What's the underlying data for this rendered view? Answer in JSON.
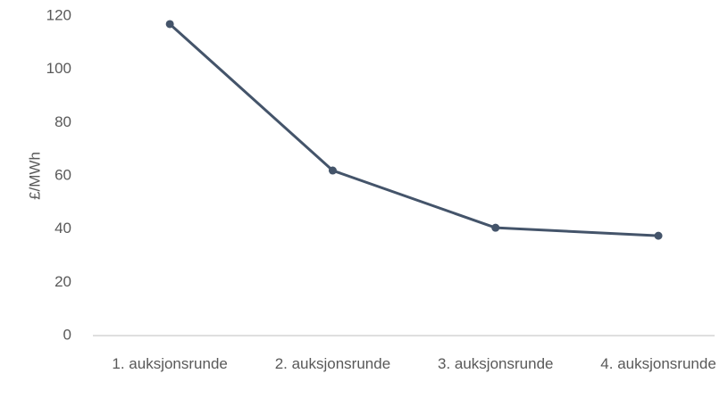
{
  "chart_data": {
    "type": "line",
    "y_label": "£/MWh",
    "categories": [
      "1. auksjonsrunde",
      "2. auksjonsrunde",
      "3. auksjonsrunde",
      "4. auksjonsrunde"
    ],
    "series": [
      {
        "name": "£/MWh",
        "color": "#44546a",
        "values": [
          117,
          62,
          40.5,
          37.5
        ]
      }
    ],
    "ylim": [
      0,
      120
    ],
    "yticks": [
      0,
      20,
      40,
      60,
      80,
      100,
      120
    ],
    "grid": false
  }
}
